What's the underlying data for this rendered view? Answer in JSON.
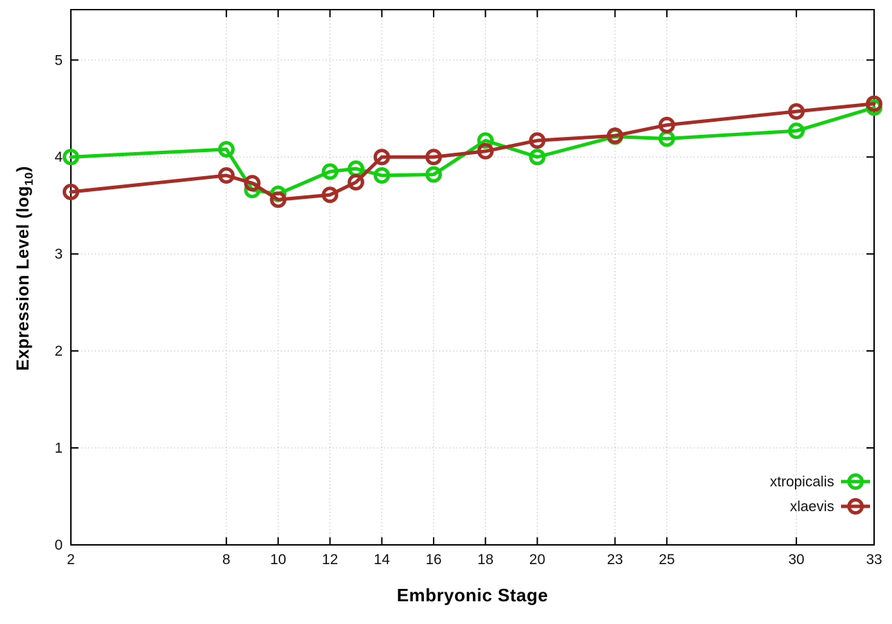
{
  "chart_data": {
    "type": "line",
    "title": "",
    "xlabel": "Embryonic Stage",
    "ylabel": "Expression Level (log10)",
    "ylabel_parts": {
      "prefix": "Expression Level (log",
      "sub": "10",
      "suffix": ")"
    },
    "x": [
      2,
      8,
      9,
      10,
      12,
      13,
      14,
      16,
      18,
      20,
      23,
      25,
      30,
      33
    ],
    "x_ticks": [
      2,
      8,
      10,
      12,
      14,
      16,
      18,
      20,
      23,
      25,
      30,
      33
    ],
    "y_ticks": [
      0,
      1,
      2,
      3,
      4,
      5
    ],
    "xlim": [
      2,
      33
    ],
    "ylim": [
      0,
      5.52
    ],
    "grid": true,
    "legend_position": "bottom-right-inside",
    "series": [
      {
        "name": "xtropicalis",
        "color": "#10d010",
        "marker": "open-circle",
        "values": [
          4.0,
          4.08,
          3.66,
          3.62,
          3.85,
          3.88,
          3.81,
          3.82,
          4.17,
          4.0,
          4.21,
          4.19,
          4.27,
          4.51
        ]
      },
      {
        "name": "xlaevis",
        "color": "#a62c25",
        "marker": "open-circle",
        "values": [
          3.64,
          3.81,
          3.73,
          3.56,
          3.61,
          3.74,
          4.0,
          4.0,
          4.06,
          4.17,
          4.22,
          4.33,
          4.47,
          4.55
        ]
      }
    ]
  }
}
